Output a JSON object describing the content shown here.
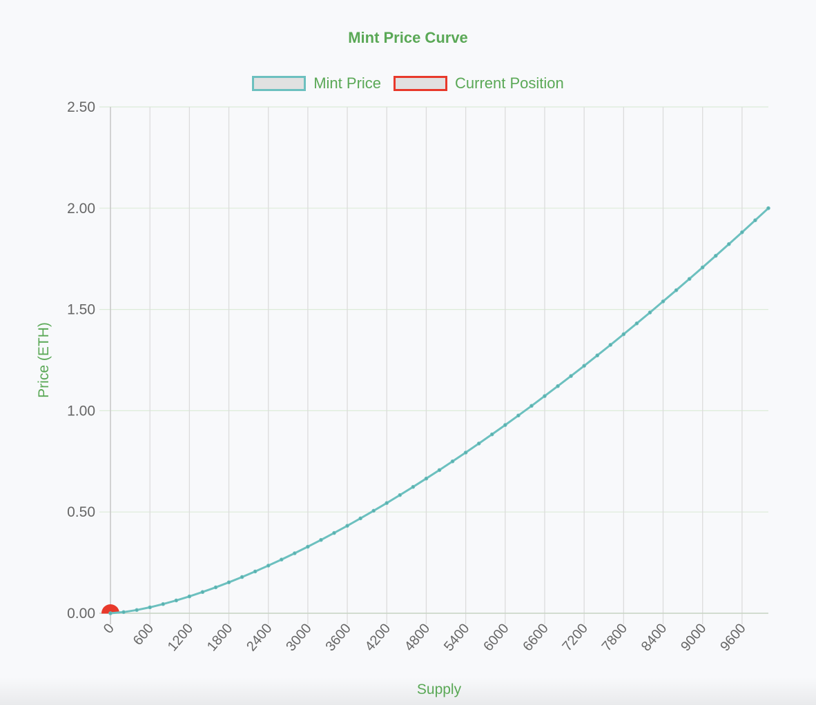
{
  "chart_data": {
    "type": "line",
    "title": "Mint Price Curve",
    "xlabel": "Supply",
    "ylabel": "Price (ETH)",
    "ylim": [
      0,
      2.5
    ],
    "xlim": [
      0,
      10000
    ],
    "y_ticks": [
      "0.00",
      "0.50",
      "1.00",
      "1.50",
      "2.00",
      "2.50"
    ],
    "x_ticks": [
      "0",
      "600",
      "1200",
      "1800",
      "2400",
      "3000",
      "3600",
      "4200",
      "4800",
      "5400",
      "6000",
      "6600",
      "7200",
      "7800",
      "8400",
      "9000",
      "9600"
    ],
    "grid": true,
    "legend_position": "top",
    "legend": [
      {
        "label": "Mint Price",
        "border_color": "#6cc0bf",
        "fill": "#e1e1e1"
      },
      {
        "label": "Current Position",
        "border_color": "#e8392b",
        "fill": "#e1e1e1"
      }
    ],
    "series": [
      {
        "name": "Mint Price",
        "color": "#6cc0bf",
        "x": [
          0,
          200,
          400,
          600,
          800,
          1000,
          1200,
          1400,
          1600,
          1800,
          2000,
          2200,
          2400,
          2600,
          2800,
          3000,
          3200,
          3400,
          3600,
          3800,
          4000,
          4200,
          4400,
          4600,
          4800,
          5000,
          5200,
          5400,
          5600,
          5800,
          6000,
          6200,
          6400,
          6600,
          6800,
          7000,
          7200,
          7400,
          7600,
          7800,
          8000,
          8200,
          8400,
          8600,
          8800,
          9000,
          9200,
          9400,
          9600,
          9800,
          10000
        ],
        "values": [
          0,
          0.0057,
          0.016,
          0.0294,
          0.0453,
          0.0632,
          0.0831,
          0.1048,
          0.128,
          0.1527,
          0.1789,
          0.2064,
          0.2352,
          0.2652,
          0.2963,
          0.3286,
          0.362,
          0.3965,
          0.432,
          0.4685,
          0.506,
          0.5444,
          0.5837,
          0.624,
          0.6651,
          0.7071,
          0.75,
          0.7936,
          0.8381,
          0.8834,
          0.9295,
          0.9764,
          1.024,
          1.0724,
          1.1215,
          1.1713,
          1.2219,
          1.2731,
          1.3251,
          1.3778,
          1.4311,
          1.4851,
          1.5398,
          1.5951,
          1.651,
          1.7076,
          1.7649,
          1.8227,
          1.8812,
          1.9403,
          2.0
        ]
      },
      {
        "name": "Current Position",
        "color": "#e8392b",
        "x": [
          0
        ],
        "values": [
          0
        ]
      }
    ]
  }
}
